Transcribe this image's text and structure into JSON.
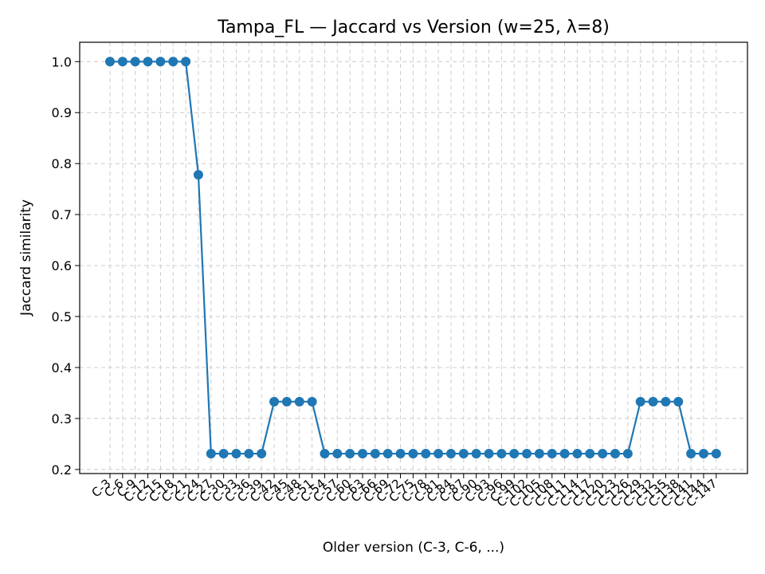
{
  "chart_data": {
    "type": "line",
    "title": "Tampa_FL — Jaccard vs Version (w=25, λ=8)",
    "xlabel": "Older version (C-3, C-6, ...)",
    "ylabel": "Jaccard similarity",
    "categories": [
      "C-3",
      "C-6",
      "C-9",
      "C-12",
      "C-15",
      "C-18",
      "C-21",
      "C-24",
      "C-27",
      "C-30",
      "C-33",
      "C-36",
      "C-39",
      "C-42",
      "C-45",
      "C-48",
      "C-51",
      "C-54",
      "C-57",
      "C-60",
      "C-63",
      "C-66",
      "C-69",
      "C-72",
      "C-75",
      "C-78",
      "C-81",
      "C-84",
      "C-87",
      "C-90",
      "C-93",
      "C-96",
      "C-99",
      "C-102",
      "C-105",
      "C-108",
      "C-111",
      "C-114",
      "C-117",
      "C-120",
      "C-123",
      "C-126",
      "C-129",
      "C-132",
      "C-135",
      "C-138",
      "C-141",
      "C-144",
      "C-147"
    ],
    "series": [
      {
        "values": [
          1.0,
          1.0,
          1.0,
          1.0,
          1.0,
          1.0,
          1.0,
          0.778,
          0.231,
          0.231,
          0.231,
          0.231,
          0.231,
          0.333,
          0.333,
          0.333,
          0.333,
          0.231,
          0.231,
          0.231,
          0.231,
          0.231,
          0.231,
          0.231,
          0.231,
          0.231,
          0.231,
          0.231,
          0.231,
          0.231,
          0.231,
          0.231,
          0.231,
          0.231,
          0.231,
          0.231,
          0.231,
          0.231,
          0.231,
          0.231,
          0.231,
          0.231,
          0.333,
          0.333,
          0.333,
          0.333,
          0.231,
          0.231,
          0.231
        ],
        "color": "#1f77b4"
      }
    ],
    "yticks": [
      "0.2",
      "0.3",
      "0.4",
      "0.5",
      "0.6",
      "0.7",
      "0.8",
      "0.9",
      "1.0"
    ],
    "ylim": [
      0.192,
      1.038
    ],
    "grid": true,
    "marker": "circle"
  }
}
